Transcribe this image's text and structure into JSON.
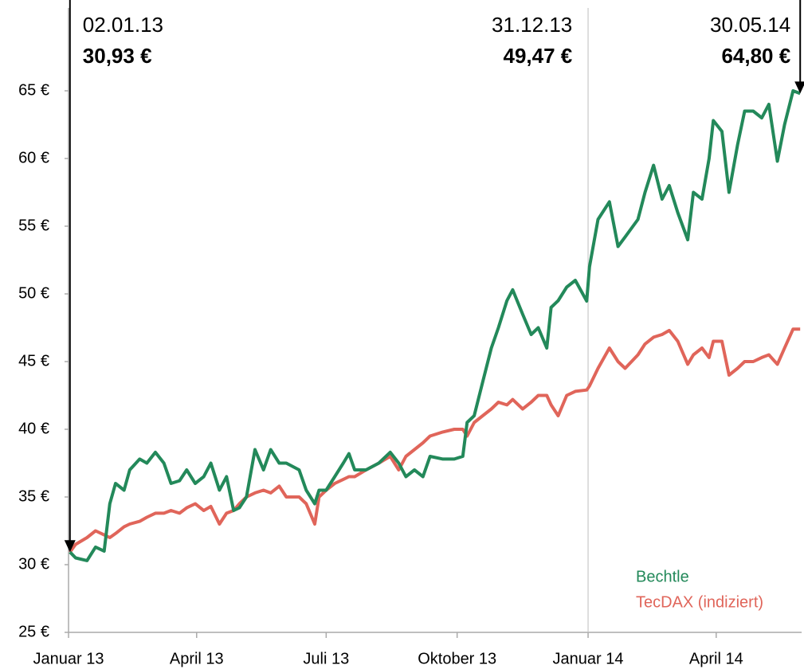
{
  "chart_data": {
    "type": "line",
    "x": [
      1,
      5,
      13,
      19,
      25,
      29,
      33,
      39,
      43,
      50,
      55,
      61,
      67,
      72,
      78,
      83,
      89,
      95,
      100,
      106,
      111,
      116,
      120,
      125,
      131,
      137,
      142,
      148,
      153,
      162,
      167,
      173,
      176,
      181,
      187,
      193,
      197,
      201,
      209,
      218,
      226,
      232,
      237,
      243,
      249,
      254,
      263,
      271,
      277,
      280,
      285,
      291,
      297,
      302,
      308,
      312,
      319,
      325,
      330,
      336,
      339,
      344,
      350,
      356,
      364,
      366,
      372,
      380,
      386,
      391,
      400,
      405,
      411,
      417,
      422,
      428,
      435,
      439,
      445,
      450,
      453,
      459,
      464,
      470,
      475,
      481,
      487,
      492,
      498,
      503,
      509,
      514
    ],
    "series": [
      {
        "name": "Bechtle",
        "color": "#23895a",
        "values": [
          30.93,
          30.5,
          30.3,
          31.3,
          31.0,
          34.5,
          36.0,
          35.5,
          37.0,
          37.8,
          37.5,
          38.3,
          37.5,
          36.0,
          36.2,
          37.0,
          36.0,
          36.5,
          37.5,
          35.5,
          36.5,
          34.0,
          34.2,
          35.0,
          38.5,
          37.0,
          38.5,
          37.5,
          37.5,
          37.0,
          35.5,
          34.5,
          35.5,
          35.5,
          36.5,
          37.5,
          38.2,
          37.0,
          37.0,
          37.5,
          38.3,
          37.5,
          36.5,
          37.0,
          36.5,
          38.0,
          37.8,
          37.8,
          38.0,
          40.5,
          41.0,
          43.5,
          46.0,
          47.5,
          49.5,
          50.3,
          48.5,
          47.0,
          47.5,
          46.0,
          49.0,
          49.5,
          50.5,
          51.0,
          49.47,
          52.0,
          55.5,
          56.8,
          53.5,
          54.2,
          55.5,
          57.5,
          59.5,
          57.0,
          58.0,
          56.0,
          54.0,
          57.5,
          57.0,
          60.0,
          62.8,
          62.0,
          57.5,
          61.0,
          63.5,
          63.5,
          63.0,
          64.0,
          59.8,
          62.5,
          65.0,
          64.8
        ]
      },
      {
        "name": "TecDAX (indiziert)",
        "color": "#e0655a",
        "values": [
          30.93,
          31.5,
          32.0,
          32.5,
          32.2,
          32.0,
          32.3,
          32.8,
          33.0,
          33.2,
          33.5,
          33.8,
          33.8,
          34.0,
          33.8,
          34.2,
          34.5,
          34.0,
          34.3,
          33.0,
          33.8,
          34.0,
          34.5,
          35.0,
          35.3,
          35.5,
          35.3,
          35.8,
          35.0,
          35.0,
          34.5,
          33.0,
          35.0,
          35.5,
          36.0,
          36.3,
          36.5,
          36.5,
          37.0,
          37.5,
          38.0,
          37.0,
          38.0,
          38.5,
          39.0,
          39.5,
          39.8,
          40.0,
          40.0,
          39.5,
          40.5,
          41.0,
          41.5,
          42.0,
          41.8,
          42.2,
          41.5,
          42.0,
          42.5,
          42.5,
          41.8,
          41.0,
          42.5,
          42.8,
          42.9,
          43.2,
          44.5,
          46.0,
          45.0,
          44.5,
          45.5,
          46.3,
          46.8,
          47.0,
          47.3,
          46.5,
          44.8,
          45.5,
          46.0,
          45.3,
          46.5,
          46.5,
          44.0,
          44.5,
          45.0,
          45.0,
          45.3,
          45.5,
          44.8,
          46.0,
          47.4,
          47.4
        ]
      }
    ],
    "xlim": [
      0,
      515
    ],
    "xticks": [
      {
        "value": 0,
        "label": "Januar 13"
      },
      {
        "value": 90,
        "label": "April 13"
      },
      {
        "value": 181,
        "label": "Juli 13"
      },
      {
        "value": 273,
        "label": "Oktober 13"
      },
      {
        "value": 365,
        "label": "Januar 14"
      },
      {
        "value": 455,
        "label": "April 14"
      }
    ],
    "ylim": [
      25,
      65
    ],
    "yticks": [
      {
        "value": 25,
        "label": "25 €"
      },
      {
        "value": 30,
        "label": "30 €"
      },
      {
        "value": 35,
        "label": "35 €"
      },
      {
        "value": 40,
        "label": "40 €"
      },
      {
        "value": 45,
        "label": "45 €"
      },
      {
        "value": 50,
        "label": "50 €"
      },
      {
        "value": 55,
        "label": "55 €"
      },
      {
        "value": 60,
        "label": "60 €"
      },
      {
        "value": 65,
        "label": "65 €"
      }
    ],
    "legend": "lower right",
    "annotations": [
      {
        "x": 1,
        "text": "02.01.13",
        "value": 30.93,
        "value_label": "30,93 €"
      },
      {
        "x": 364,
        "text": "31.12.13",
        "value": 49.47,
        "value_label": "49,47 €"
      },
      {
        "x": 514,
        "text": "30.05.14",
        "value": 64.8,
        "value_label": "64,80 €"
      }
    ]
  }
}
